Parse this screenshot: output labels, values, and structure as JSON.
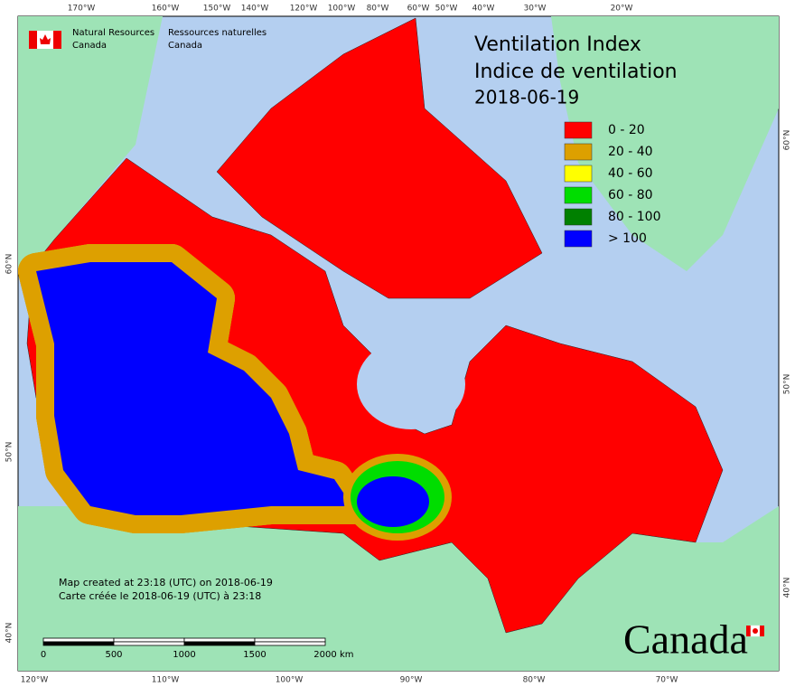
{
  "header": {
    "org_en": [
      "Natural Resources",
      "Canada"
    ],
    "org_fr": [
      "Ressources naturelles",
      "Canada"
    ]
  },
  "title": [
    "Ventilation Index",
    "Indice de ventilation",
    "2018-06-19"
  ],
  "legend": [
    {
      "label": "0 - 20",
      "color": "#ff0000"
    },
    {
      "label": "20 - 40",
      "color": "#dda000"
    },
    {
      "label": "40 - 60",
      "color": "#ffff00"
    },
    {
      "label": "60 - 80",
      "color": "#00dd00"
    },
    {
      "label": "80 - 100",
      "color": "#008000"
    },
    {
      "label": "> 100",
      "color": "#0000ff"
    }
  ],
  "longitude_labels_top": [
    "170°W",
    "160°W",
    "150°W",
    "140°W",
    "120°W",
    "100°W",
    "80°W",
    "60°W",
    "50°W",
    "40°W",
    "30°W",
    "20°W"
  ],
  "longitude_labels_bottom": [
    "120°W",
    "110°W",
    "100°W",
    "90°W",
    "80°W",
    "70°W"
  ],
  "latitude_labels_left": [
    "60°N",
    "50°N",
    "40°N"
  ],
  "latitude_labels_right": [
    "60°N",
    "50°N",
    "40°N"
  ],
  "scale_bar": {
    "labels": [
      "0",
      "500",
      "1000",
      "1500",
      "2000"
    ],
    "unit": "km"
  },
  "notes": [
    "Map created at 23:18 (UTC) on 2018-06-19",
    "Carte créée le 2018-06-19 (UTC) à 23:18"
  ],
  "wordmark": "Canada"
}
